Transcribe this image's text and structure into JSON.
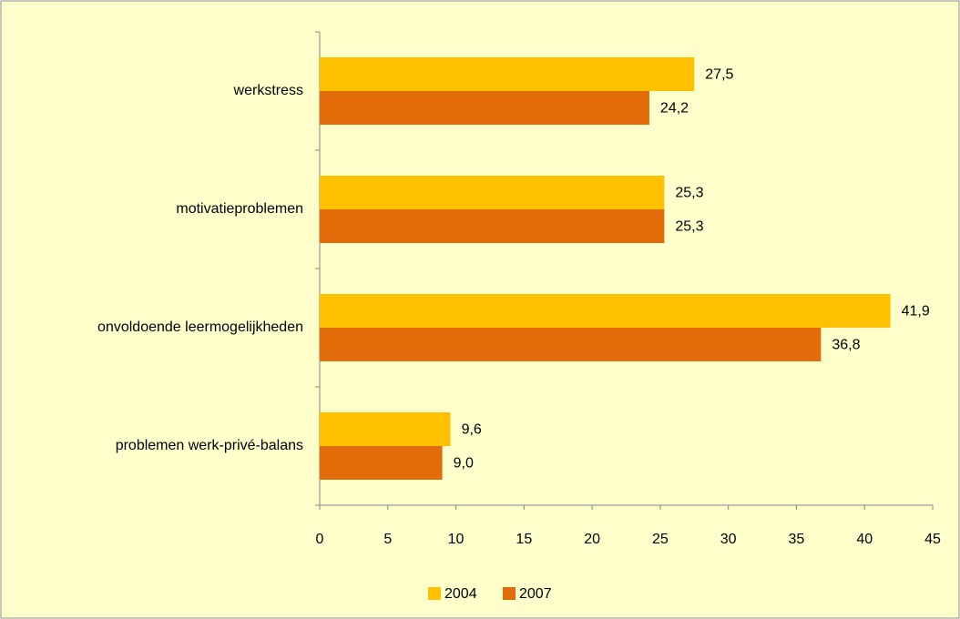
{
  "chart_data": {
    "type": "barh",
    "categories": [
      "werkstress",
      "motivatieproblemen",
      "onvoldoende leermogelijkheden",
      "problemen werk-privé-balans"
    ],
    "series": [
      {
        "name": "2004",
        "color": "#ffc000",
        "values": [
          27.5,
          25.3,
          41.9,
          9.6
        ],
        "value_labels": [
          "27,5",
          "25,3",
          "41,9",
          "9,6"
        ]
      },
      {
        "name": "2007",
        "color": "#e36c0a",
        "values": [
          24.2,
          25.3,
          36.8,
          9.0
        ],
        "value_labels": [
          "24,2",
          "25,3",
          "36,8",
          "9,0"
        ]
      }
    ],
    "xlim": [
      0,
      45
    ],
    "xticks": [
      0,
      5,
      10,
      15,
      20,
      25,
      30,
      35,
      40,
      45
    ],
    "legend": "bottom"
  }
}
